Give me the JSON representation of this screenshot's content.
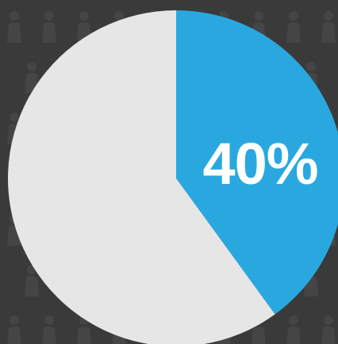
{
  "colors": {
    "background": "#3a3a3a",
    "pattern": "#454545",
    "highlight_slice": "#29a8e0",
    "remainder_slice": "#e6e6e6",
    "label": "#ffffff"
  },
  "chart_data": {
    "type": "pie",
    "title": "",
    "slices": [
      {
        "label": "",
        "value": 40,
        "color": "#29a8e0"
      },
      {
        "label": "",
        "value": 60,
        "color": "#e6e6e6"
      }
    ],
    "data_labels": [
      "40%",
      ""
    ],
    "start_angle_deg": 0,
    "direction": "clockwise",
    "legend": "none"
  },
  "highlight_label": "40%"
}
